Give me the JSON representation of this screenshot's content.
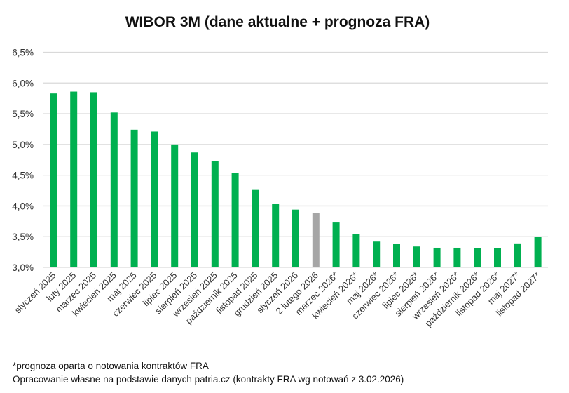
{
  "chart_data": {
    "type": "bar",
    "title": "WIBOR 3M (dane aktualne + prognoza FRA)",
    "xlabel": "",
    "ylabel": "",
    "ylim": [
      3.0,
      6.5
    ],
    "yticks": [
      "3,0%",
      "3,5%",
      "4,0%",
      "4,5%",
      "5,0%",
      "5,5%",
      "6,0%",
      "6,5%"
    ],
    "ytick_values": [
      3.0,
      3.5,
      4.0,
      4.5,
      5.0,
      5.5,
      6.0,
      6.5
    ],
    "grid": true,
    "categories": [
      "styczeń 2025",
      "luty 2025",
      "marzec 2025",
      "kwiecień 2025",
      "maj 2025",
      "czerwiec 2025",
      "lipiec 2025",
      "sierpień 2025",
      "wrzesień 2025",
      "październik 2025",
      "listopad 2025",
      "grudzień 2025",
      "styczeń 2026",
      "2 lutego 2026",
      "marzec 2026*",
      "kwiecień 2026*",
      "maj 2026*",
      "czerwiec 2026*",
      "lipiec 2026*",
      "sierpień 2026*",
      "wrzesień 2026*",
      "październik 2026*",
      "listopad 2026*",
      "maj 2027*",
      "listopad 2027*"
    ],
    "values": [
      5.83,
      5.86,
      5.85,
      5.52,
      5.24,
      5.21,
      5.0,
      4.87,
      4.73,
      4.54,
      4.26,
      4.03,
      3.94,
      3.89,
      3.73,
      3.54,
      3.42,
      3.38,
      3.34,
      3.32,
      3.32,
      3.31,
      3.31,
      3.39,
      3.5
    ],
    "highlight_index": 13,
    "colors": {
      "bar": "#00b050",
      "highlight": "#a6a6a6",
      "grid": "#d9d9d9"
    }
  },
  "footnotes": {
    "forecast_note": "*prognoza oparta o notowania kontraktów FRA",
    "source_note": "Opracowanie własne na podstawie danych patria.cz (kontrakty FRA wg notowań z 3.02.2026)"
  }
}
